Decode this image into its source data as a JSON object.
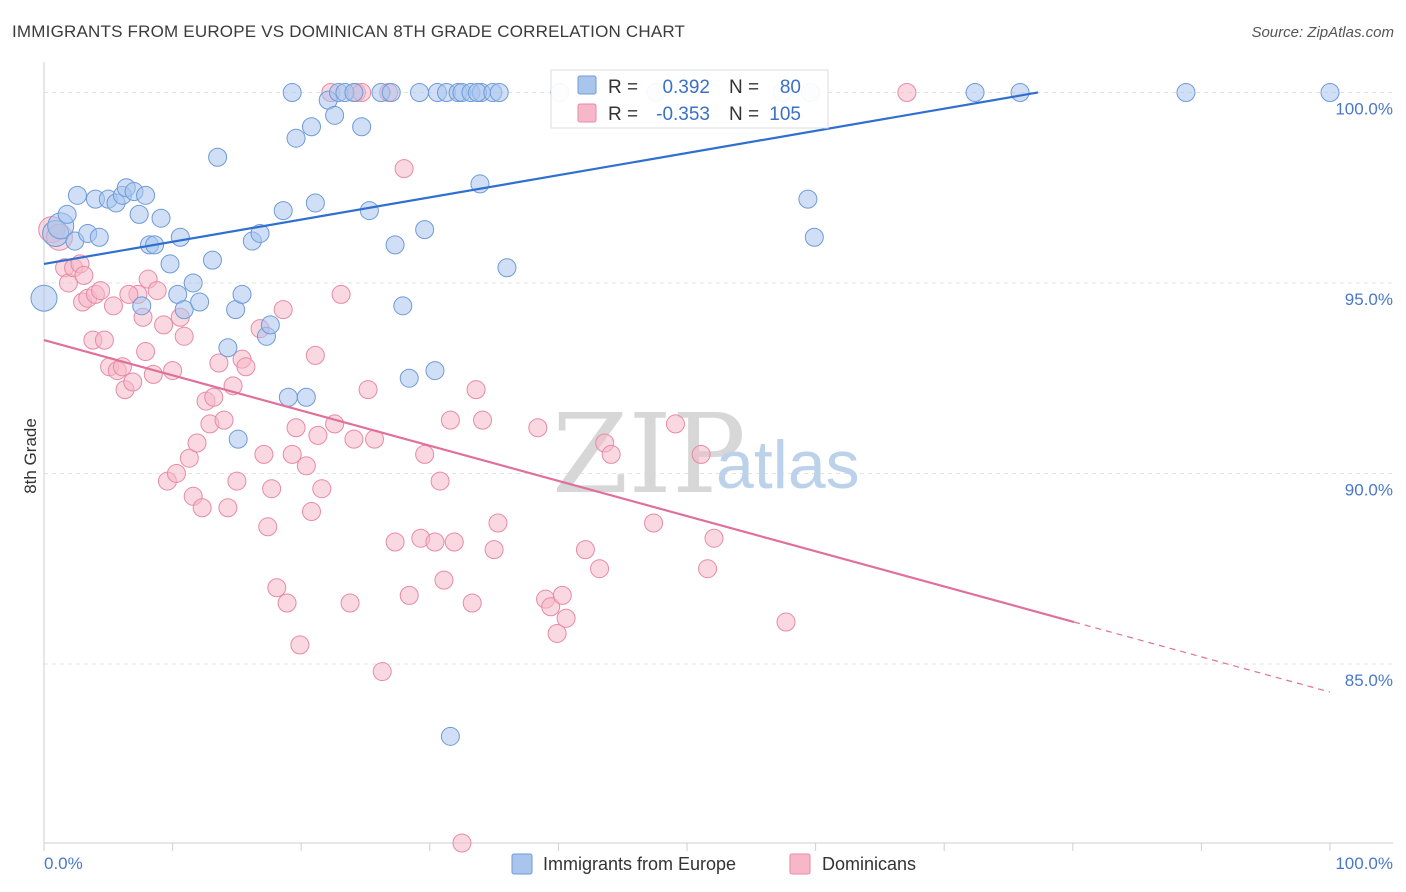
{
  "title": "IMMIGRANTS FROM EUROPE VS DOMINICAN 8TH GRADE CORRELATION CHART",
  "source": "Source: ZipAtlas.com",
  "colors": {
    "blue_fill": "#a9c5ec",
    "blue_stroke": "#6e9bd8",
    "blue_line": "#2f6fd0",
    "pink_fill": "#f6b8c9",
    "pink_stroke": "#e88aa6",
    "pink_line": "#e0709a",
    "grid": "#e3e3e3",
    "axis_label": "#4a78c9"
  },
  "watermark": {
    "zip": "ZIP",
    "atlas": "atlas"
  },
  "chart_data": {
    "type": "scatter",
    "title": "IMMIGRANTS FROM EUROPE VS DOMINICAN 8TH GRADE CORRELATION CHART",
    "xlabel": "",
    "ylabel": "8th Grade",
    "xlim": [
      0,
      100
    ],
    "ylim": [
      80.3,
      100.8
    ],
    "x_tick_labels": {
      "left": "0.0%",
      "right": "100.0%"
    },
    "y_ticks": [
      {
        "value": 100,
        "label": "100.0%"
      },
      {
        "value": 95,
        "label": "95.0%"
      },
      {
        "value": 90,
        "label": "90.0%"
      },
      {
        "value": 85,
        "label": "85.0%"
      }
    ],
    "legend": {
      "rows": [
        {
          "r_label": "R =",
          "r_value": "0.392",
          "n_label": "N =",
          "n_value": "80"
        },
        {
          "r_label": "R =",
          "r_value": "-0.353",
          "n_label": "N =",
          "n_value": "105"
        }
      ]
    },
    "series": [
      {
        "name": "Immigrants from Europe",
        "trend": {
          "x1": 0,
          "y1": 95.5,
          "x2": 77.3,
          "y2": 100.0,
          "dashed_to": 77.3
        },
        "points": [
          [
            0,
            94.6
          ],
          [
            0.9,
            96.3
          ],
          [
            1.3,
            96.5
          ],
          [
            1.8,
            96.8
          ],
          [
            2.4,
            96.1
          ],
          [
            2.6,
            97.3
          ],
          [
            3.4,
            96.3
          ],
          [
            4.0,
            97.2
          ],
          [
            4.3,
            96.2
          ],
          [
            5.0,
            97.2
          ],
          [
            5.6,
            97.1
          ],
          [
            6.1,
            97.3
          ],
          [
            6.4,
            97.5
          ],
          [
            7.0,
            97.4
          ],
          [
            7.4,
            96.8
          ],
          [
            7.6,
            94.4
          ],
          [
            7.9,
            97.3
          ],
          [
            8.2,
            96.0
          ],
          [
            8.6,
            96.0
          ],
          [
            9.1,
            96.7
          ],
          [
            9.8,
            95.5
          ],
          [
            10.4,
            94.7
          ],
          [
            10.6,
            96.2
          ],
          [
            10.9,
            94.3
          ],
          [
            11.6,
            95.0
          ],
          [
            12.1,
            94.5
          ],
          [
            13.1,
            95.6
          ],
          [
            13.5,
            98.3
          ],
          [
            14.3,
            93.3
          ],
          [
            14.9,
            94.3
          ],
          [
            15.1,
            90.9
          ],
          [
            15.4,
            94.7
          ],
          [
            16.2,
            96.1
          ],
          [
            16.8,
            96.3
          ],
          [
            17.3,
            93.6
          ],
          [
            17.6,
            93.9
          ],
          [
            18.6,
            96.9
          ],
          [
            19.0,
            92.0
          ],
          [
            19.3,
            100.0
          ],
          [
            19.6,
            98.8
          ],
          [
            20.4,
            92.0
          ],
          [
            20.8,
            99.1
          ],
          [
            21.1,
            97.1
          ],
          [
            22.1,
            99.8
          ],
          [
            22.6,
            99.4
          ],
          [
            22.9,
            100.0
          ],
          [
            23.4,
            100.0
          ],
          [
            24.1,
            100.0
          ],
          [
            24.7,
            99.1
          ],
          [
            25.3,
            96.9
          ],
          [
            26.2,
            100.0
          ],
          [
            27.0,
            100.0
          ],
          [
            27.3,
            96.0
          ],
          [
            27.9,
            94.4
          ],
          [
            28.4,
            92.5
          ],
          [
            29.2,
            100.0
          ],
          [
            29.6,
            96.4
          ],
          [
            30.4,
            92.7
          ],
          [
            30.6,
            100.0
          ],
          [
            31.3,
            100.0
          ],
          [
            31.6,
            83.1
          ],
          [
            32.2,
            100.0
          ],
          [
            32.5,
            100.0
          ],
          [
            33.2,
            100.0
          ],
          [
            34.0,
            100.0
          ],
          [
            33.7,
            100.0
          ],
          [
            33.9,
            97.6
          ],
          [
            34.9,
            100.0
          ],
          [
            35.4,
            100.0
          ],
          [
            36.0,
            95.4
          ],
          [
            40.1,
            100.0
          ],
          [
            47.6,
            100.0
          ],
          [
            57.4,
            100.0
          ],
          [
            59.6,
            100.0
          ],
          [
            59.4,
            97.2
          ],
          [
            59.9,
            96.2
          ],
          [
            72.4,
            100.0
          ],
          [
            75.9,
            100.0
          ],
          [
            88.8,
            100.0
          ],
          [
            100.0,
            100.0
          ]
        ]
      },
      {
        "name": "Dominicans",
        "trend": {
          "x1": 0,
          "y1": 93.5,
          "x2": 80.1,
          "y2": 86.1,
          "dashed_to": 100
        },
        "points": [
          [
            0.6,
            96.4
          ],
          [
            1.2,
            96.2
          ],
          [
            1.6,
            95.4
          ],
          [
            1.9,
            95.0
          ],
          [
            2.3,
            95.4
          ],
          [
            2.8,
            95.5
          ],
          [
            3.0,
            94.5
          ],
          [
            3.4,
            94.6
          ],
          [
            3.8,
            93.5
          ],
          [
            4.0,
            94.7
          ],
          [
            4.4,
            94.8
          ],
          [
            4.7,
            93.5
          ],
          [
            5.1,
            92.8
          ],
          [
            5.4,
            94.4
          ],
          [
            5.7,
            92.7
          ],
          [
            6.1,
            92.8
          ],
          [
            6.3,
            92.2
          ],
          [
            6.9,
            92.4
          ],
          [
            7.3,
            94.7
          ],
          [
            7.7,
            94.1
          ],
          [
            7.9,
            93.2
          ],
          [
            8.1,
            95.1
          ],
          [
            8.5,
            92.6
          ],
          [
            8.8,
            94.8
          ],
          [
            9.3,
            93.9
          ],
          [
            9.6,
            89.8
          ],
          [
            10.0,
            92.7
          ],
          [
            10.3,
            90.0
          ],
          [
            10.6,
            94.1
          ],
          [
            10.9,
            93.6
          ],
          [
            11.3,
            90.4
          ],
          [
            11.6,
            89.4
          ],
          [
            11.9,
            90.8
          ],
          [
            12.3,
            89.1
          ],
          [
            12.6,
            91.9
          ],
          [
            12.9,
            91.3
          ],
          [
            13.2,
            92.0
          ],
          [
            13.6,
            92.9
          ],
          [
            14.0,
            91.4
          ],
          [
            14.3,
            89.1
          ],
          [
            14.7,
            92.3
          ],
          [
            15.0,
            89.8
          ],
          [
            15.4,
            93.0
          ],
          [
            15.7,
            92.8
          ],
          [
            16.8,
            93.8
          ],
          [
            17.1,
            90.5
          ],
          [
            17.4,
            88.6
          ],
          [
            17.7,
            89.6
          ],
          [
            18.1,
            87.0
          ],
          [
            18.6,
            94.3
          ],
          [
            18.9,
            86.6
          ],
          [
            19.3,
            90.5
          ],
          [
            19.6,
            91.2
          ],
          [
            19.9,
            85.5
          ],
          [
            20.4,
            90.2
          ],
          [
            20.8,
            89.0
          ],
          [
            21.1,
            93.1
          ],
          [
            21.3,
            91.0
          ],
          [
            21.6,
            89.6
          ],
          [
            22.3,
            100.0
          ],
          [
            22.6,
            91.3
          ],
          [
            23.1,
            94.7
          ],
          [
            24.1,
            90.9
          ],
          [
            24.3,
            100.0
          ],
          [
            23.8,
            86.6
          ],
          [
            24.7,
            100.0
          ],
          [
            25.2,
            92.2
          ],
          [
            25.7,
            90.9
          ],
          [
            26.3,
            84.8
          ],
          [
            26.8,
            100.0
          ],
          [
            27.3,
            88.2
          ],
          [
            28.0,
            98.0
          ],
          [
            28.4,
            86.8
          ],
          [
            29.3,
            88.3
          ],
          [
            29.6,
            90.5
          ],
          [
            30.4,
            88.2
          ],
          [
            30.8,
            89.8
          ],
          [
            31.1,
            87.2
          ],
          [
            31.6,
            91.4
          ],
          [
            31.9,
            88.2
          ],
          [
            32.5,
            80.3
          ],
          [
            33.3,
            86.6
          ],
          [
            33.6,
            92.2
          ],
          [
            34.1,
            91.4
          ],
          [
            35.0,
            88.0
          ],
          [
            35.3,
            88.7
          ],
          [
            38.4,
            91.2
          ],
          [
            39.0,
            86.7
          ],
          [
            39.4,
            86.5
          ],
          [
            39.9,
            85.8
          ],
          [
            40.3,
            86.8
          ],
          [
            40.6,
            86.2
          ],
          [
            42.1,
            88.0
          ],
          [
            43.2,
            87.5
          ],
          [
            43.6,
            90.8
          ],
          [
            44.1,
            90.5
          ],
          [
            47.4,
            88.7
          ],
          [
            49.1,
            91.3
          ],
          [
            51.1,
            90.5
          ],
          [
            51.6,
            87.5
          ],
          [
            52.1,
            88.3
          ],
          [
            57.7,
            86.1
          ],
          [
            67.1,
            100.0
          ],
          [
            6.6,
            94.7
          ],
          [
            3.1,
            95.2
          ]
        ]
      }
    ]
  },
  "bottom_legend": [
    {
      "label": "Immigrants from Europe"
    },
    {
      "label": "Dominicans"
    }
  ]
}
